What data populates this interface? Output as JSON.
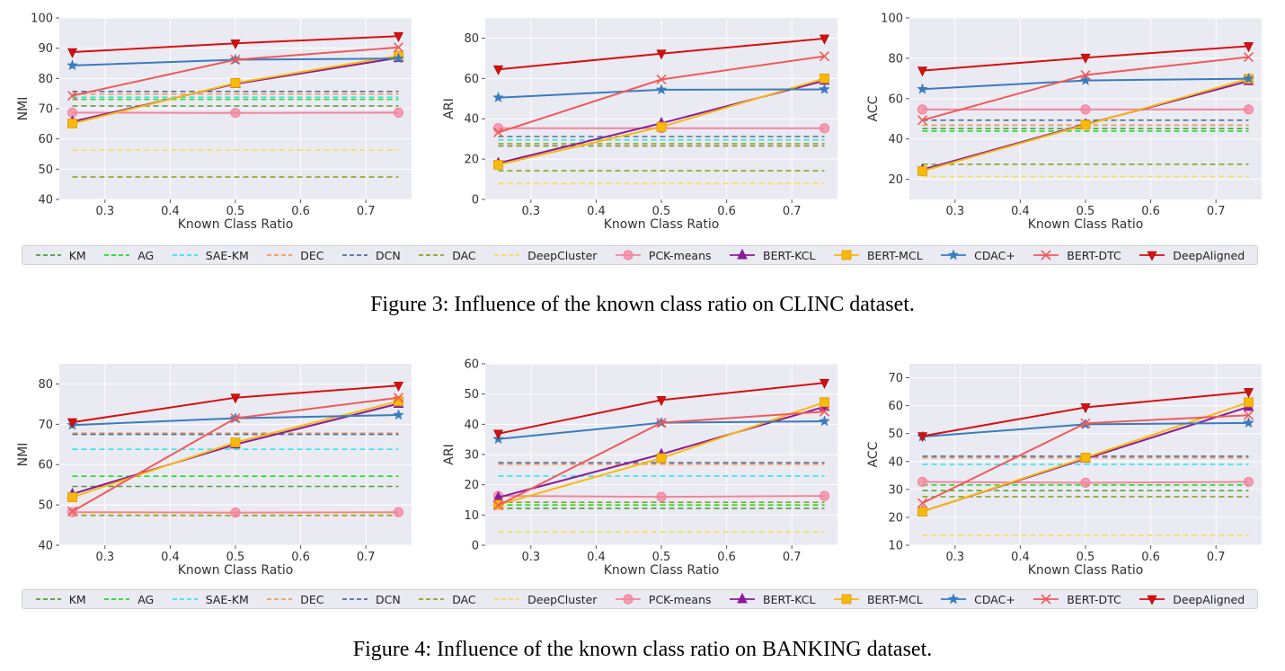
{
  "legend": [
    {
      "name": "KM",
      "color": "#4f9f3a",
      "style": "dashed",
      "marker": "none"
    },
    {
      "name": "AG",
      "color": "#22dd22",
      "style": "dashed",
      "marker": "none"
    },
    {
      "name": "SAE-KM",
      "color": "#33e6e6",
      "style": "dashed",
      "marker": "none"
    },
    {
      "name": "DEC",
      "color": "#f5995a",
      "style": "dashed",
      "marker": "none"
    },
    {
      "name": "DCN",
      "color": "#4f6f9a",
      "style": "dashed",
      "marker": "none"
    },
    {
      "name": "DAC",
      "color": "#8aa520",
      "style": "dashed",
      "marker": "none"
    },
    {
      "name": "DeepCluster",
      "color": "#f7dd55",
      "style": "dashed",
      "marker": "none"
    },
    {
      "name": "PCK-means",
      "color": "#f4859e",
      "style": "solid",
      "marker": "circle"
    },
    {
      "name": "BERT-KCL",
      "color": "#8b1a9b",
      "style": "solid",
      "marker": "triangle-up"
    },
    {
      "name": "BERT-MCL",
      "color": "#f8b90c",
      "style": "solid",
      "marker": "square"
    },
    {
      "name": "CDAC+",
      "color": "#3a7cc0",
      "style": "solid",
      "marker": "star"
    },
    {
      "name": "BERT-DTC",
      "color": "#f05a5a",
      "style": "solid",
      "marker": "x"
    },
    {
      "name": "DeepAligned",
      "color": "#d90f0f",
      "style": "solid",
      "marker": "triangle-down"
    }
  ],
  "figures": [
    {
      "caption": "Figure 3:  Influence of the known class ratio on CLINC dataset."
    },
    {
      "caption": "Figure 4:  Influence of the known class ratio on BANKING dataset."
    }
  ],
  "chart_data": [
    {
      "type": "line",
      "figure": 0,
      "xlabel": "Known Class Ratio",
      "ylabel": "NMI",
      "x": [
        0.25,
        0.5,
        0.75
      ],
      "xlim": [
        0.23,
        0.77
      ],
      "ylim": [
        40,
        100
      ],
      "xticks": [
        0.3,
        0.4,
        0.5,
        0.6,
        0.7
      ],
      "yticks": [
        40,
        50,
        60,
        70,
        80,
        90,
        100
      ],
      "series": [
        {
          "name": "KM",
          "values": [
            70.9,
            70.9,
            70.9
          ]
        },
        {
          "name": "AG",
          "values": [
            73.1,
            73.1,
            73.1
          ]
        },
        {
          "name": "SAE-KM",
          "values": [
            73.8,
            73.8,
            73.8
          ]
        },
        {
          "name": "DEC",
          "values": [
            74.8,
            74.8,
            74.8
          ]
        },
        {
          "name": "DCN",
          "values": [
            75.7,
            75.7,
            75.7
          ]
        },
        {
          "name": "DAC",
          "values": [
            47.4,
            47.4,
            47.4
          ]
        },
        {
          "name": "DeepCluster",
          "values": [
            56.3,
            56.3,
            56.3
          ]
        },
        {
          "name": "PCK-means",
          "values": [
            68.7,
            68.6,
            68.7
          ]
        },
        {
          "name": "BERT-KCL",
          "values": [
            65.7,
            78.2,
            86.8
          ]
        },
        {
          "name": "BERT-MCL",
          "values": [
            65.1,
            78.5,
            87.5
          ]
        },
        {
          "name": "CDAC+",
          "values": [
            84.3,
            86.2,
            86.6
          ]
        },
        {
          "name": "BERT-DTC",
          "values": [
            74.3,
            86.2,
            90.3
          ]
        },
        {
          "name": "DeepAligned",
          "values": [
            88.7,
            91.6,
            94.0
          ]
        }
      ]
    },
    {
      "type": "line",
      "figure": 0,
      "xlabel": "Known Class Ratio",
      "ylabel": "ARI",
      "x": [
        0.25,
        0.5,
        0.75
      ],
      "xlim": [
        0.23,
        0.77
      ],
      "ylim": [
        0,
        90
      ],
      "xticks": [
        0.3,
        0.4,
        0.5,
        0.6,
        0.7
      ],
      "yticks": [
        0,
        20,
        40,
        60,
        80
      ],
      "series": [
        {
          "name": "KM",
          "values": [
            26.5,
            26.5,
            26.5
          ]
        },
        {
          "name": "AG",
          "values": [
            27.7,
            27.7,
            27.7
          ]
        },
        {
          "name": "SAE-KM",
          "values": [
            29.5,
            29.5,
            29.5
          ]
        },
        {
          "name": "DEC",
          "values": [
            27.5,
            27.5,
            27.5
          ]
        },
        {
          "name": "DCN",
          "values": [
            31.2,
            31.2,
            31.2
          ]
        },
        {
          "name": "DAC",
          "values": [
            14.2,
            14.2,
            14.2
          ]
        },
        {
          "name": "DeepCluster",
          "values": [
            7.9,
            7.9,
            7.9
          ]
        },
        {
          "name": "PCK-means",
          "values": [
            35.3,
            35.3,
            35.3
          ]
        },
        {
          "name": "BERT-KCL",
          "values": [
            18.0,
            37.8,
            58.9
          ]
        },
        {
          "name": "BERT-MCL",
          "values": [
            17.2,
            36.0,
            60.0
          ]
        },
        {
          "name": "CDAC+",
          "values": [
            50.5,
            54.4,
            54.6
          ]
        },
        {
          "name": "BERT-DTC",
          "values": [
            33.2,
            59.5,
            71.0
          ]
        },
        {
          "name": "DeepAligned",
          "values": [
            64.5,
            72.3,
            79.8
          ]
        }
      ]
    },
    {
      "type": "line",
      "figure": 0,
      "xlabel": "Known Class Ratio",
      "ylabel": "ACC",
      "x": [
        0.25,
        0.5,
        0.75
      ],
      "xlim": [
        0.23,
        0.77
      ],
      "ylim": [
        10,
        100
      ],
      "xticks": [
        0.3,
        0.4,
        0.5,
        0.6,
        0.7
      ],
      "yticks": [
        20,
        40,
        60,
        80,
        100
      ],
      "series": [
        {
          "name": "KM",
          "values": [
            45.1,
            45.1,
            45.1
          ]
        },
        {
          "name": "AG",
          "values": [
            43.9,
            43.9,
            43.9
          ]
        },
        {
          "name": "SAE-KM",
          "values": [
            46.8,
            46.8,
            46.8
          ]
        },
        {
          "name": "DEC",
          "values": [
            46.9,
            46.9,
            46.9
          ]
        },
        {
          "name": "DCN",
          "values": [
            49.3,
            49.3,
            49.3
          ]
        },
        {
          "name": "DAC",
          "values": [
            27.4,
            27.4,
            27.4
          ]
        },
        {
          "name": "DeepCluster",
          "values": [
            21.4,
            21.4,
            21.4
          ]
        },
        {
          "name": "PCK-means",
          "values": [
            54.6,
            54.6,
            54.6
          ]
        },
        {
          "name": "BERT-KCL",
          "values": [
            24.8,
            47.3,
            68.7
          ]
        },
        {
          "name": "BERT-MCL",
          "values": [
            24.1,
            47.0,
            69.8
          ]
        },
        {
          "name": "CDAC+",
          "values": [
            64.7,
            69.0,
            69.9
          ]
        },
        {
          "name": "BERT-DTC",
          "values": [
            49.3,
            71.7,
            80.6
          ]
        },
        {
          "name": "DeepAligned",
          "values": [
            73.9,
            80.3,
            86.0
          ]
        }
      ]
    },
    {
      "type": "line",
      "figure": 1,
      "xlabel": "Known Class Ratio",
      "ylabel": "NMI",
      "x": [
        0.25,
        0.5,
        0.75
      ],
      "xlim": [
        0.23,
        0.77
      ],
      "ylim": [
        40,
        85
      ],
      "xticks": [
        0.3,
        0.4,
        0.5,
        0.6,
        0.7
      ],
      "yticks": [
        40,
        50,
        60,
        70,
        80
      ],
      "series": [
        {
          "name": "KM",
          "values": [
            54.6,
            54.6,
            54.6
          ]
        },
        {
          "name": "AG",
          "values": [
            57.1,
            57.1,
            57.1
          ]
        },
        {
          "name": "SAE-KM",
          "values": [
            63.8,
            63.8,
            63.8
          ]
        },
        {
          "name": "DEC",
          "values": [
            67.8,
            67.8,
            67.8
          ]
        },
        {
          "name": "DCN",
          "values": [
            67.5,
            67.5,
            67.5
          ]
        },
        {
          "name": "DAC",
          "values": [
            47.4,
            47.4,
            47.4
          ]
        },
        {
          "name": "DeepCluster",
          "values": [
            47.9,
            47.9,
            47.9
          ]
        },
        {
          "name": "PCK-means",
          "values": [
            48.2,
            48.1,
            48.2
          ]
        },
        {
          "name": "BERT-KCL",
          "values": [
            52.7,
            65.0,
            75.1
          ]
        },
        {
          "name": "BERT-MCL",
          "values": [
            51.9,
            65.5,
            75.7
          ]
        },
        {
          "name": "CDAC+",
          "values": [
            69.8,
            71.5,
            72.3
          ]
        },
        {
          "name": "BERT-DTC",
          "values": [
            48.4,
            71.5,
            76.6
          ]
        },
        {
          "name": "DeepAligned",
          "values": [
            70.5,
            76.6,
            79.6
          ]
        }
      ]
    },
    {
      "type": "line",
      "figure": 1,
      "xlabel": "Known Class Ratio",
      "ylabel": "ARI",
      "x": [
        0.25,
        0.5,
        0.75
      ],
      "xlim": [
        0.23,
        0.77
      ],
      "ylim": [
        0,
        60
      ],
      "xticks": [
        0.3,
        0.4,
        0.5,
        0.6,
        0.7
      ],
      "yticks": [
        0,
        10,
        20,
        30,
        40,
        50,
        60
      ],
      "series": [
        {
          "name": "KM",
          "values": [
            12.2,
            12.2,
            12.2
          ]
        },
        {
          "name": "AG",
          "values": [
            13.3,
            13.3,
            13.3
          ]
        },
        {
          "name": "SAE-KM",
          "values": [
            22.9,
            22.9,
            22.9
          ]
        },
        {
          "name": "DEC",
          "values": [
            26.8,
            26.8,
            26.8
          ]
        },
        {
          "name": "DCN",
          "values": [
            27.3,
            27.3,
            27.3
          ]
        },
        {
          "name": "DAC",
          "values": [
            14.2,
            14.2,
            14.2
          ]
        },
        {
          "name": "DeepCluster",
          "values": [
            4.4,
            4.4,
            4.4
          ]
        },
        {
          "name": "PCK-means",
          "values": [
            16.3,
            16.0,
            16.3
          ]
        },
        {
          "name": "BERT-KCL",
          "values": [
            15.8,
            30.1,
            45.8
          ]
        },
        {
          "name": "BERT-MCL",
          "values": [
            13.4,
            28.8,
            47.3
          ]
        },
        {
          "name": "CDAC+",
          "values": [
            35.1,
            40.5,
            41.0
          ]
        },
        {
          "name": "BERT-DTC",
          "values": [
            13.2,
            40.5,
            44.2
          ]
        },
        {
          "name": "DeepAligned",
          "values": [
            36.9,
            48.0,
            53.7
          ]
        }
      ]
    },
    {
      "type": "line",
      "figure": 1,
      "xlabel": "Known Class Ratio",
      "ylabel": "ACC",
      "x": [
        0.25,
        0.5,
        0.75
      ],
      "xlim": [
        0.23,
        0.77
      ],
      "ylim": [
        10,
        75
      ],
      "xticks": [
        0.3,
        0.4,
        0.5,
        0.6,
        0.7
      ],
      "yticks": [
        10,
        20,
        30,
        40,
        50,
        60,
        70
      ],
      "series": [
        {
          "name": "KM",
          "values": [
            29.6,
            29.6,
            29.6
          ]
        },
        {
          "name": "AG",
          "values": [
            31.6,
            31.6,
            31.6
          ]
        },
        {
          "name": "SAE-KM",
          "values": [
            39.0,
            39.0,
            39.0
          ]
        },
        {
          "name": "DEC",
          "values": [
            41.3,
            41.3,
            41.3
          ]
        },
        {
          "name": "DCN",
          "values": [
            41.9,
            41.9,
            41.9
          ]
        },
        {
          "name": "DAC",
          "values": [
            27.4,
            27.4,
            27.4
          ]
        },
        {
          "name": "DeepCluster",
          "values": [
            13.5,
            13.5,
            13.5
          ]
        },
        {
          "name": "PCK-means",
          "values": [
            32.7,
            32.4,
            32.7
          ]
        },
        {
          "name": "BERT-KCL",
          "values": [
            22.1,
            41.0,
            59.6
          ]
        },
        {
          "name": "BERT-MCL",
          "values": [
            22.0,
            41.4,
            61.2
          ]
        },
        {
          "name": "CDAC+",
          "values": [
            48.9,
            53.3,
            53.8
          ]
        },
        {
          "name": "BERT-DTC",
          "values": [
            25.1,
            53.7,
            56.6
          ]
        },
        {
          "name": "DeepAligned",
          "values": [
            49.1,
            59.4,
            64.9
          ]
        }
      ]
    }
  ]
}
